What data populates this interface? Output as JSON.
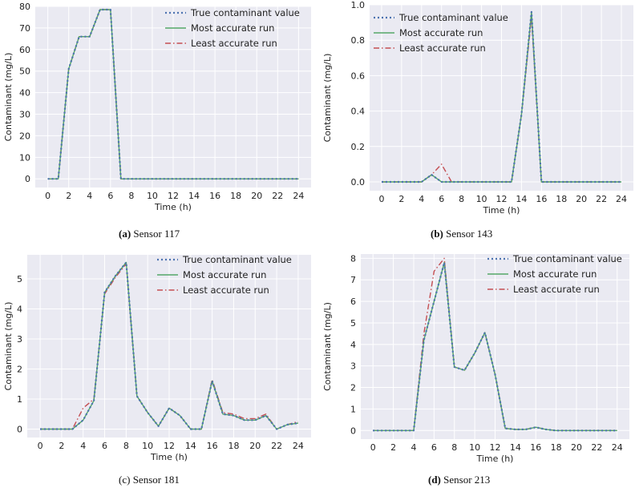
{
  "legend_labels": [
    "True contaminant value",
    "Most accurate run",
    "Least accurate run"
  ],
  "colors": {
    "plot_background": "#eaeaf2",
    "grid": "#ffffff",
    "true_series": "#4c72b0",
    "most_series": "#55a868",
    "least_series": "#c44e52"
  },
  "panels": [
    {
      "caption_letter": "(a)",
      "caption_text": " Sensor 117",
      "chart_data": {
        "type": "line",
        "xlabel": "Time (h)",
        "ylabel": "Contaminant (mg/L)",
        "xlim": [
          -1.2,
          25.2
        ],
        "ylim": [
          -4,
          80
        ],
        "xticks": [
          0,
          2,
          4,
          6,
          8,
          10,
          12,
          14,
          16,
          18,
          20,
          22,
          24
        ],
        "yticks": [
          0,
          10,
          20,
          30,
          40,
          50,
          60,
          70,
          80
        ],
        "x": [
          0,
          1,
          2,
          3,
          4,
          5,
          6,
          7,
          8,
          9,
          10,
          11,
          12,
          13,
          14,
          15,
          16,
          17,
          18,
          19,
          20,
          21,
          22,
          23,
          24
        ],
        "series": [
          {
            "name": "True contaminant value",
            "values": [
              0,
              0,
              51,
              66,
              66,
              78.5,
              78.5,
              0,
              0,
              0,
              0,
              0,
              0,
              0,
              0,
              0,
              0,
              0,
              0,
              0,
              0,
              0,
              0,
              0,
              0
            ]
          },
          {
            "name": "Most accurate run",
            "values": [
              0,
              0,
              51,
              66,
              66,
              78.5,
              78.5,
              0,
              0,
              0,
              0,
              0,
              0,
              0,
              0,
              0,
              0,
              0,
              0,
              0,
              0,
              0,
              0,
              0,
              0
            ]
          },
          {
            "name": "Least accurate run",
            "values": [
              0,
              0,
              51,
              66,
              66,
              78.5,
              78.5,
              0,
              0,
              0,
              0,
              0,
              0,
              0,
              0,
              0,
              0,
              0,
              0,
              0,
              0,
              0,
              0,
              0,
              0
            ]
          }
        ],
        "legend_position": "top-right"
      }
    },
    {
      "caption_letter": "(b)",
      "caption_text": " Sensor 143",
      "chart_data": {
        "type": "line",
        "xlabel": "Time (h)",
        "ylabel": "Contaminant (mg/L)",
        "xlim": [
          -1.2,
          25.2
        ],
        "ylim": [
          -0.05,
          1.0
        ],
        "xticks": [
          0,
          2,
          4,
          6,
          8,
          10,
          12,
          14,
          16,
          18,
          20,
          22,
          24
        ],
        "yticks": [
          0.0,
          0.2,
          0.4,
          0.6,
          0.8,
          1.0
        ],
        "yticklabels": [
          "0.0",
          "0.2",
          "0.4",
          "0.6",
          "0.8",
          "1.0"
        ],
        "x": [
          0,
          1,
          2,
          3,
          4,
          5,
          6,
          7,
          8,
          9,
          10,
          11,
          12,
          13,
          14,
          15,
          16,
          17,
          18,
          19,
          20,
          21,
          22,
          23,
          24
        ],
        "series": [
          {
            "name": "True contaminant value",
            "values": [
              0,
              0,
              0,
              0,
              0,
              0.04,
              0,
              0,
              0,
              0,
              0,
              0,
              0,
              0,
              0.38,
              0.96,
              0,
              0,
              0,
              0,
              0,
              0,
              0,
              0,
              0
            ]
          },
          {
            "name": "Most accurate run",
            "values": [
              0,
              0,
              0,
              0,
              0,
              0.04,
              0,
              0,
              0,
              0,
              0,
              0,
              0,
              0,
              0.38,
              0.96,
              0,
              0,
              0,
              0,
              0,
              0,
              0,
              0,
              0
            ]
          },
          {
            "name": "Least accurate run",
            "values": [
              0,
              0,
              0,
              0,
              0,
              0.04,
              0.1,
              0,
              0,
              0,
              0,
              0,
              0,
              0,
              0.38,
              0.93,
              0,
              0,
              0,
              0,
              0,
              0,
              0,
              0,
              0
            ]
          }
        ],
        "legend_position": "top-left"
      }
    },
    {
      "caption_letter": "(c)",
      "caption_text": " Sensor 181",
      "chart_data": {
        "type": "line",
        "xlabel": "Time (h)",
        "ylabel": "Contaminant (mg/L)",
        "xlim": [
          -1.2,
          25.2
        ],
        "ylim": [
          -0.28,
          5.8
        ],
        "xticks": [
          0,
          2,
          4,
          6,
          8,
          10,
          12,
          14,
          16,
          18,
          20,
          22,
          24
        ],
        "yticks": [
          0,
          1,
          2,
          3,
          4,
          5
        ],
        "x": [
          0,
          1,
          2,
          3,
          4,
          5,
          6,
          7,
          8,
          9,
          10,
          11,
          12,
          13,
          14,
          15,
          16,
          17,
          18,
          19,
          20,
          21,
          22,
          23,
          24
        ],
        "series": [
          {
            "name": "True contaminant value",
            "values": [
              0,
              0,
              0,
              0,
              0.3,
              0.95,
              4.55,
              5.1,
              5.55,
              1.1,
              0.55,
              0.1,
              0.7,
              0.45,
              0,
              0,
              1.6,
              0.5,
              0.45,
              0.3,
              0.3,
              0.45,
              0,
              0.15,
              0.2
            ]
          },
          {
            "name": "Most accurate run",
            "values": [
              0,
              0,
              0,
              0,
              0.3,
              0.95,
              4.55,
              5.1,
              5.55,
              1.1,
              0.55,
              0.1,
              0.7,
              0.45,
              0,
              0,
              1.6,
              0.5,
              0.45,
              0.3,
              0.3,
              0.45,
              0,
              0.15,
              0.2
            ]
          },
          {
            "name": "Least accurate run",
            "values": [
              0,
              0,
              0,
              0,
              0.7,
              1.0,
              4.5,
              5.05,
              5.5,
              1.1,
              0.55,
              0.1,
              0.7,
              0.45,
              0,
              0,
              1.65,
              0.55,
              0.5,
              0.35,
              0.35,
              0.5,
              0,
              0.15,
              0.25
            ]
          }
        ],
        "legend_position": "top-right"
      }
    },
    {
      "caption_letter": "(d)",
      "caption_text": " Sensor 213",
      "chart_data": {
        "type": "line",
        "xlabel": "Time (h)",
        "ylabel": "Contaminant (mg/L)",
        "xlim": [
          -1.2,
          25.2
        ],
        "ylim": [
          -0.4,
          8.2
        ],
        "xticks": [
          0,
          2,
          4,
          6,
          8,
          10,
          12,
          14,
          16,
          18,
          20,
          22,
          24
        ],
        "yticks": [
          0,
          1,
          2,
          3,
          4,
          5,
          6,
          7,
          8
        ],
        "x": [
          0,
          1,
          2,
          3,
          4,
          5,
          6,
          7,
          8,
          9,
          10,
          11,
          12,
          13,
          14,
          15,
          16,
          17,
          18,
          19,
          20,
          21,
          22,
          23,
          24
        ],
        "series": [
          {
            "name": "True contaminant value",
            "values": [
              0,
              0,
              0,
              0,
              0,
              4.2,
              6.0,
              7.8,
              2.95,
              2.8,
              3.6,
              4.55,
              2.6,
              0.1,
              0.05,
              0.05,
              0.15,
              0.05,
              0,
              0,
              0,
              0,
              0,
              0,
              0
            ]
          },
          {
            "name": "Most accurate run",
            "values": [
              0,
              0,
              0,
              0,
              0,
              4.2,
              6.0,
              7.8,
              2.95,
              2.8,
              3.6,
              4.55,
              2.6,
              0.1,
              0.05,
              0.05,
              0.15,
              0.05,
              0,
              0,
              0,
              0,
              0,
              0,
              0
            ]
          },
          {
            "name": "Least accurate run",
            "values": [
              0,
              0,
              0,
              0,
              0,
              4.5,
              7.4,
              8.0,
              2.95,
              2.8,
              3.6,
              4.55,
              2.6,
              0.1,
              0.05,
              0.05,
              0.15,
              0.05,
              0,
              0,
              0,
              0,
              0,
              0,
              0
            ]
          }
        ],
        "legend_position": "top-right"
      }
    }
  ]
}
